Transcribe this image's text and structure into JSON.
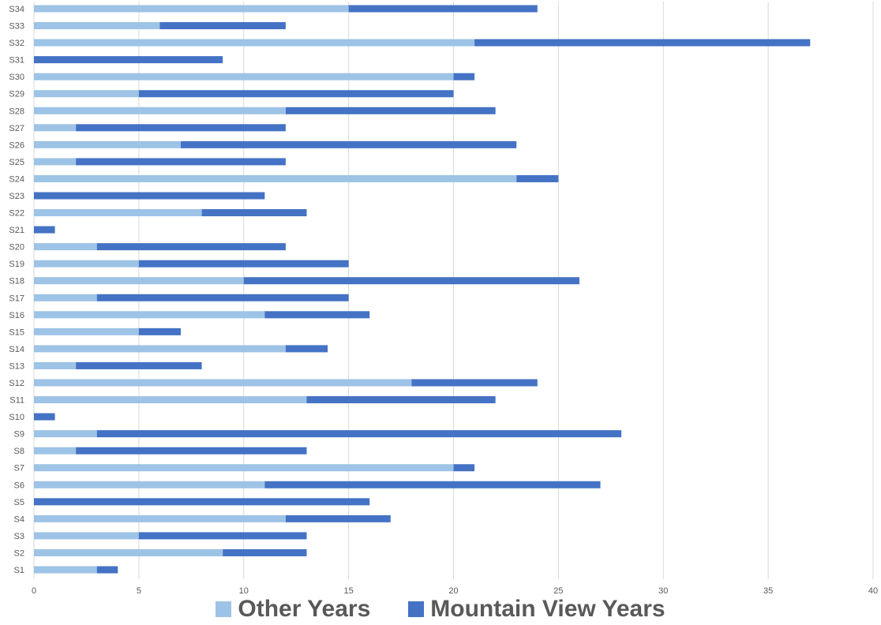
{
  "chart_data": {
    "type": "bar",
    "orientation": "horizontal",
    "stacked": true,
    "title": "",
    "xlabel": "",
    "ylabel": "",
    "xlim": [
      0,
      40
    ],
    "x_ticks": [
      0,
      5,
      10,
      15,
      20,
      25,
      30,
      35,
      40
    ],
    "grid": "vertical",
    "legend_position": "bottom",
    "categories": [
      "S1",
      "S2",
      "S3",
      "S4",
      "S5",
      "S6",
      "S7",
      "S8",
      "S9",
      "S10",
      "S11",
      "S12",
      "S13",
      "S14",
      "S15",
      "S16",
      "S17",
      "S18",
      "S19",
      "S20",
      "S21",
      "S22",
      "S23",
      "S24",
      "S25",
      "S26",
      "S27",
      "S28",
      "S29",
      "S30",
      "S31",
      "S32",
      "S33",
      "S34"
    ],
    "series": [
      {
        "name": "Other Years",
        "color": "#9DC3E6",
        "values": [
          3,
          9,
          5,
          12,
          0,
          11,
          20,
          2,
          3,
          0,
          13,
          18,
          2,
          12,
          5,
          11,
          3,
          10,
          5,
          3,
          0,
          8,
          0,
          23,
          2,
          7,
          2,
          12,
          5,
          20,
          0,
          21,
          6,
          15
        ]
      },
      {
        "name": "Mountain View Years",
        "color": "#4472C4",
        "values": [
          1,
          4,
          8,
          5,
          16,
          16,
          1,
          11,
          25,
          1,
          9,
          6,
          6,
          2,
          2,
          5,
          12,
          16,
          10,
          9,
          1,
          5,
          11,
          2,
          10,
          16,
          10,
          10,
          15,
          1,
          9,
          16,
          6,
          9
        ]
      }
    ]
  }
}
